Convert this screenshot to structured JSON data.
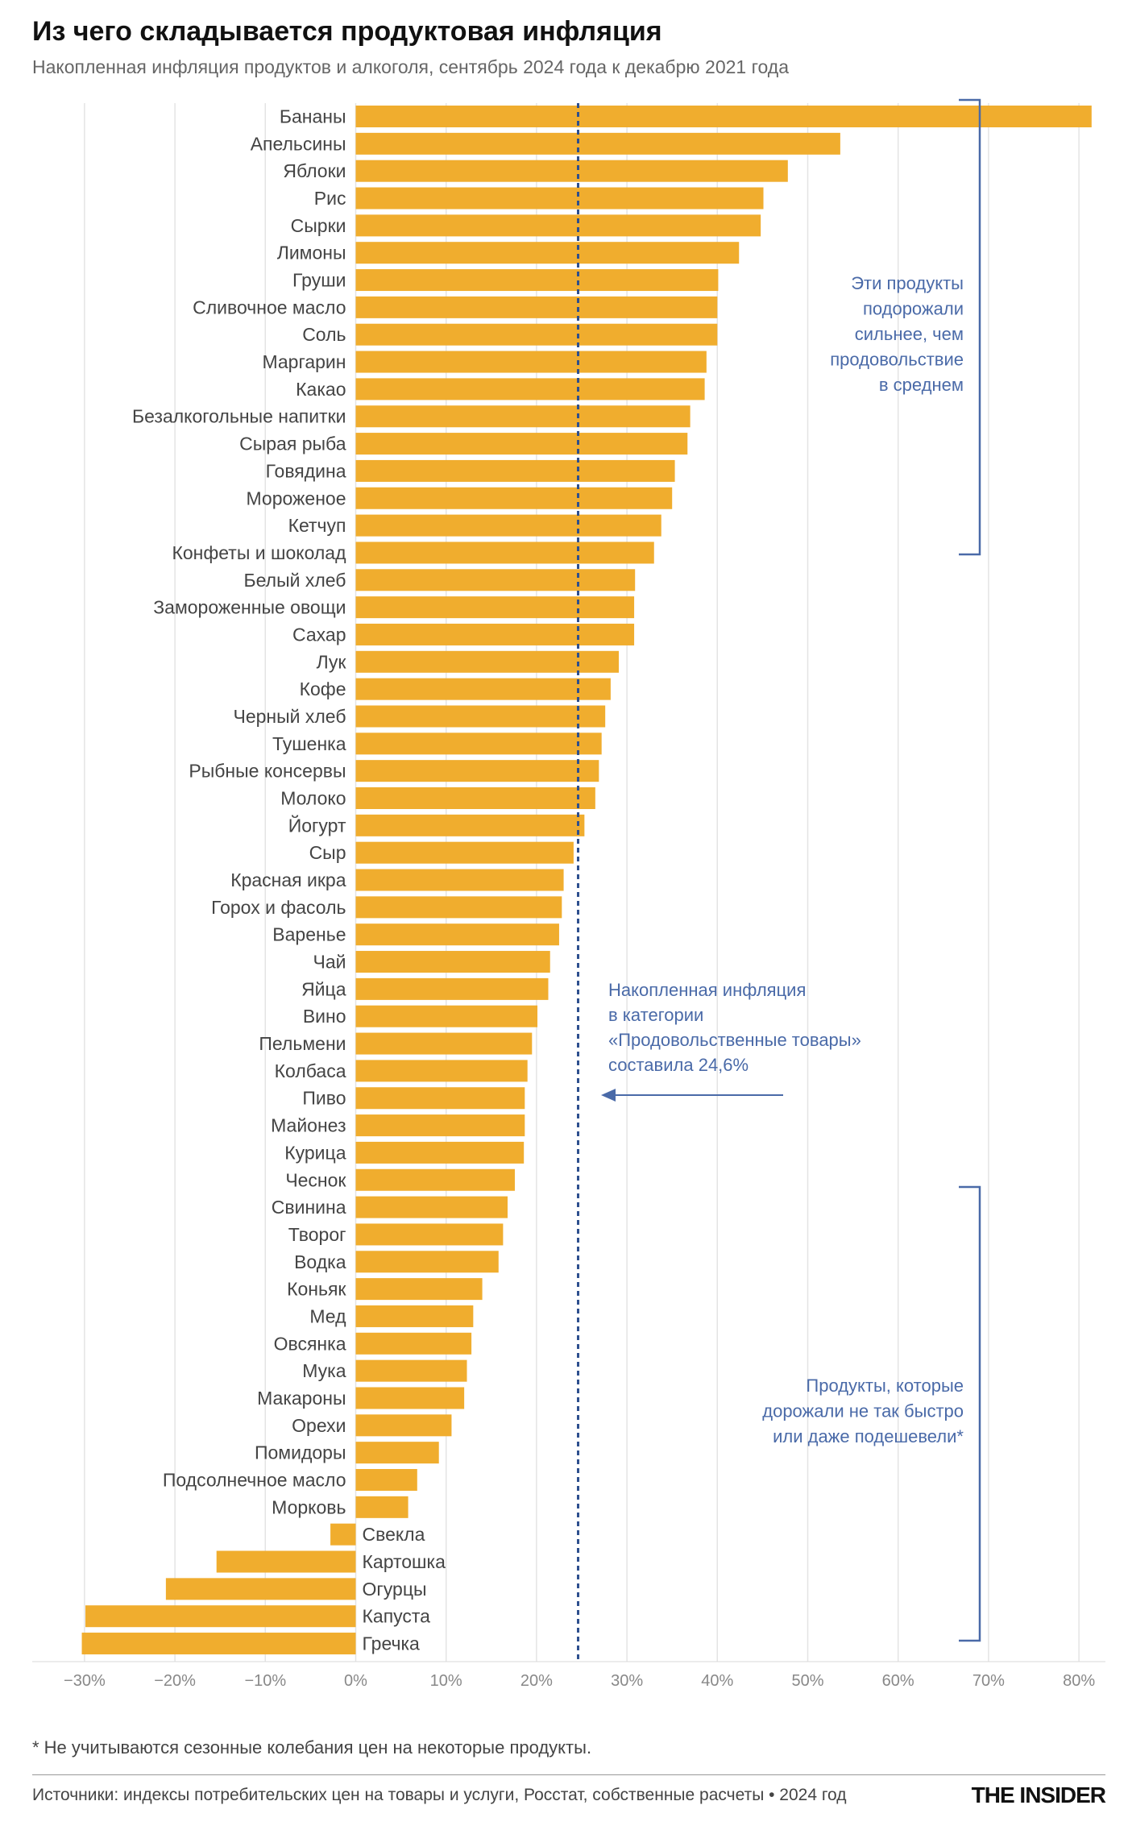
{
  "title": "Из чего складывается продуктовая инфляция",
  "subtitle": "Накопленная инфляция продуктов и алкоголя, сентябрь 2024 года к декабрю 2021 года",
  "footnote": "* Не учитываются сезонные колебания цен на некоторые продукты.",
  "source": "Источники: индексы потребительских цен на товары и услуги, Росстат, собственные расчеты • 2024 год",
  "logo": "THE INSIDER",
  "colors": {
    "bar": "#f0ad2e",
    "reference_line": "#2d4f8e",
    "annotation": "#4a6aa8",
    "grid": "#e4e4e4"
  },
  "chart_data": {
    "type": "bar",
    "orientation": "horizontal",
    "title": "Из чего складывается продуктовая инфляция",
    "subtitle": "Накопленная инфляция продуктов и алкоголя, сентябрь 2024 года к декабрю 2021 года",
    "xlim": [
      -30,
      82
    ],
    "x_ticks": [
      -30,
      -20,
      -10,
      0,
      10,
      20,
      30,
      40,
      50,
      60,
      70,
      80
    ],
    "x_tick_labels": [
      "−30%",
      "−20%",
      "−10%",
      "0%",
      "10%",
      "20%",
      "30%",
      "40%",
      "50%",
      "60%",
      "70%",
      "80%"
    ],
    "grid": true,
    "categories": [
      "Бананы",
      "Апельсины",
      "Яблоки",
      "Рис",
      "Сырки",
      "Лимоны",
      "Груши",
      "Сливочное масло",
      "Соль",
      "Маргарин",
      "Какао",
      "Безалкогольные напитки",
      "Сырая рыба",
      "Говядина",
      "Мороженое",
      "Кетчуп",
      "Конфеты и шоколад",
      "Белый хлеб",
      "Замороженные овощи",
      "Сахар",
      "Лук",
      "Кофе",
      "Черный хлеб",
      "Тушенка",
      "Рыбные консервы",
      "Молоко",
      "Йогурт",
      "Сыр",
      "Красная икра",
      "Горох и фасоль",
      "Варенье",
      "Чай",
      "Яйца",
      "Вино",
      "Пельмени",
      "Колбаса",
      "Пиво",
      "Майонез",
      "Курица",
      "Чеснок",
      "Свинина",
      "Творог",
      "Водка",
      "Коньяк",
      "Мед",
      "Овсянка",
      "Мука",
      "Макароны",
      "Орехи",
      "Помидоры",
      "Подсолнечное масло",
      "Морковь",
      "Свекла",
      "Картошка",
      "Огурцы",
      "Капуста",
      "Гречка"
    ],
    "values": [
      81.4,
      53.6,
      47.8,
      45.1,
      44.8,
      42.4,
      40.1,
      40.0,
      40.0,
      38.8,
      38.6,
      37.0,
      36.7,
      35.3,
      35.0,
      33.8,
      33.0,
      30.9,
      30.8,
      30.8,
      29.1,
      28.2,
      27.6,
      27.2,
      26.9,
      26.5,
      25.3,
      24.1,
      23.0,
      22.8,
      22.5,
      21.5,
      21.3,
      20.1,
      19.5,
      19.0,
      18.7,
      18.7,
      18.6,
      17.6,
      16.8,
      16.3,
      15.8,
      14.0,
      13.0,
      12.8,
      12.3,
      12.0,
      10.6,
      9.2,
      6.8,
      5.8,
      -2.8,
      -15.4,
      -21.0,
      -29.9,
      -30.3
    ],
    "reference_line": {
      "value": 24.6
    },
    "annotations": {
      "reference": [
        "Накопленная инфляция",
        "в категории",
        "«Продовольственные товары»",
        "составила 24,6%"
      ],
      "above_group": [
        "Эти продукты",
        "подорожали",
        "сильнее, чем",
        "продовольствие",
        "в среднем"
      ],
      "below_group": [
        "Продукты, которые",
        "дорожали не так быстро",
        "или даже подешевели*"
      ]
    }
  }
}
